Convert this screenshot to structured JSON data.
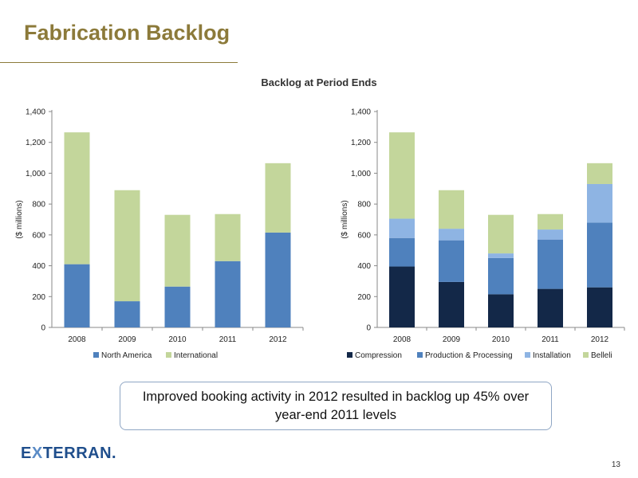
{
  "slide": {
    "title": "Fabrication Backlog",
    "chart_heading": "Backlog at Period Ends",
    "callout_text": "Improved booking activity in 2012 resulted in backlog up 45% over year-end 2011 levels",
    "logo_text_e": "E",
    "logo_text_x": "X",
    "logo_text_rest": "TERRAN",
    "logo_text_dot": ".",
    "page_number": "13"
  },
  "colors": {
    "title": "#8C7A3A",
    "north_america": "#4F81BD",
    "international": "#C3D69B",
    "compression": "#132848",
    "production_processing": "#4F81BD",
    "installation": "#8EB4E3",
    "belleli": "#C3D69B"
  },
  "chart_data": [
    {
      "type": "bar",
      "stacked": true,
      "categories": [
        "2008",
        "2009",
        "2010",
        "2011",
        "2012"
      ],
      "ylabel": "($ millions)",
      "ylim": [
        0,
        1400
      ],
      "yticks": [
        0,
        200,
        400,
        600,
        800,
        1000,
        1200,
        1400
      ],
      "ytick_labels": [
        "0",
        "200",
        "400",
        "600",
        "800",
        "1,000",
        "1,200",
        "1,400"
      ],
      "legend": "bottom",
      "series": [
        {
          "name": "North America",
          "color": "#4F81BD",
          "values": [
            410,
            170,
            265,
            430,
            615
          ]
        },
        {
          "name": "International",
          "color": "#C3D69B",
          "values": [
            855,
            720,
            465,
            305,
            450
          ]
        }
      ]
    },
    {
      "type": "bar",
      "stacked": true,
      "categories": [
        "2008",
        "2009",
        "2010",
        "2011",
        "2012"
      ],
      "ylabel": "($ millions)",
      "ylim": [
        0,
        1400
      ],
      "yticks": [
        0,
        200,
        400,
        600,
        800,
        1000,
        1200,
        1400
      ],
      "ytick_labels": [
        "0",
        "200",
        "400",
        "600",
        "800",
        "1,000",
        "1,200",
        "1,400"
      ],
      "legend": "bottom",
      "series": [
        {
          "name": "Compression",
          "color": "#132848",
          "values": [
            395,
            295,
            215,
            250,
            260
          ]
        },
        {
          "name": "Production & Processing",
          "color": "#4F81BD",
          "values": [
            185,
            270,
            235,
            320,
            420
          ]
        },
        {
          "name": "Installation",
          "color": "#8EB4E3",
          "values": [
            125,
            75,
            30,
            65,
            250
          ]
        },
        {
          "name": "Belleli",
          "color": "#C3D69B",
          "values": [
            560,
            250,
            250,
            100,
            135
          ]
        }
      ]
    }
  ]
}
